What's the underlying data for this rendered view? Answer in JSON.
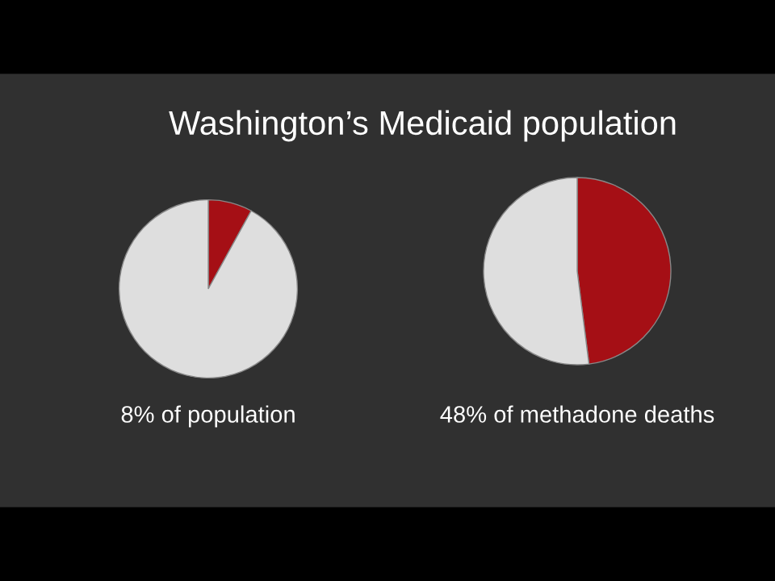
{
  "chart_data": [
    {
      "type": "pie",
      "title": "Washington’s Medicaid population",
      "categories": [
        null,
        null
      ],
      "values": [
        8,
        92
      ],
      "colors": [
        "#a50f15",
        "#dedede"
      ],
      "annotations": [
        "8% of population"
      ]
    },
    {
      "type": "pie",
      "categories": [
        null,
        null
      ],
      "values": [
        48,
        52
      ],
      "colors": [
        "#a50f15",
        "#dedede"
      ],
      "annotations": [
        "48% of methadone deaths"
      ]
    }
  ]
}
